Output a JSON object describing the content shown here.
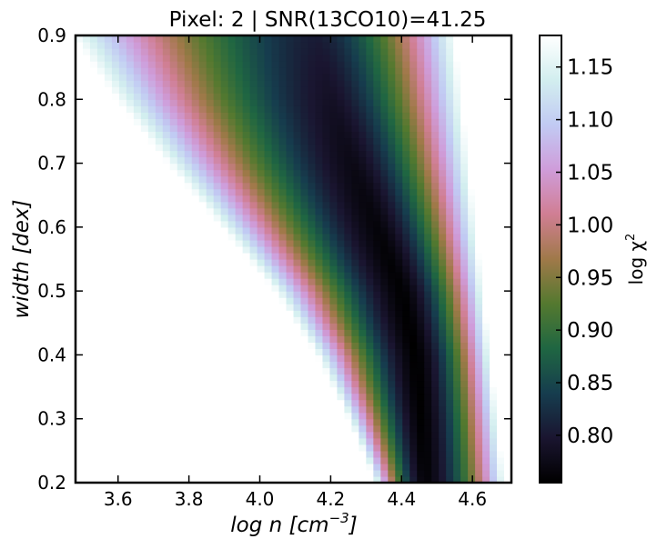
{
  "chart_data": {
    "type": "heatmap",
    "title": "Pixel: 2 | SNR(13CO10)=41.25",
    "xlabel": "log n [cm",
    "xlabel_sup": "−3",
    "xlabel_tail": "]",
    "ylabel": "width [dex]",
    "xlim": [
      3.48,
      4.71
    ],
    "ylim": [
      0.2,
      0.9
    ],
    "xticks": [
      3.6,
      3.8,
      4.0,
      4.2,
      4.4,
      4.6
    ],
    "xtick_labels": [
      "3.6",
      "3.8",
      "4.0",
      "4.2",
      "4.4",
      "4.6"
    ],
    "yticks": [
      0.2,
      0.3,
      0.4,
      0.5,
      0.6,
      0.7,
      0.8,
      0.9
    ],
    "ytick_labels": [
      "0.2",
      "0.3",
      "0.4",
      "0.5",
      "0.6",
      "0.7",
      "0.8",
      "0.9"
    ],
    "colorbar": {
      "label": "log χ",
      "label_sup": "2",
      "min": 0.755,
      "max": 1.18,
      "ticks": [
        0.8,
        0.85,
        0.9,
        0.95,
        1.0,
        1.05,
        1.1,
        1.15
      ],
      "tick_labels": [
        "0.80",
        "0.85",
        "0.90",
        "0.95",
        "1.00",
        "1.05",
        "1.10",
        "1.15"
      ],
      "colormap": "cubehelix",
      "colormap_stops": [
        "#000000",
        "#1a1530",
        "#163d4e",
        "#1f6642",
        "#54792f",
        "#a07949",
        "#d07e93",
        "#cf9cda",
        "#c1caf3",
        "#d2eeef",
        "#ffffff"
      ]
    },
    "valley": {
      "description_of_min_locus": "minimum chi-square valley",
      "min_log_n_at_width": [
        {
          "width": 0.2,
          "log_n": 4.465
        },
        {
          "width": 0.3,
          "log_n": 4.455
        },
        {
          "width": 0.4,
          "log_n": 4.44
        },
        {
          "width": 0.5,
          "log_n": 4.4
        },
        {
          "width": 0.6,
          "log_n": 4.33
        },
        {
          "width": 0.7,
          "log_n": 4.26
        },
        {
          "width": 0.8,
          "log_n": 4.2
        },
        {
          "width": 0.9,
          "log_n": 4.16
        }
      ],
      "min_value": 0.755,
      "right_edge_at_width": [
        {
          "width": 0.2,
          "log_n": 4.69
        },
        {
          "width": 0.9,
          "log_n": 4.55
        }
      ]
    }
  }
}
